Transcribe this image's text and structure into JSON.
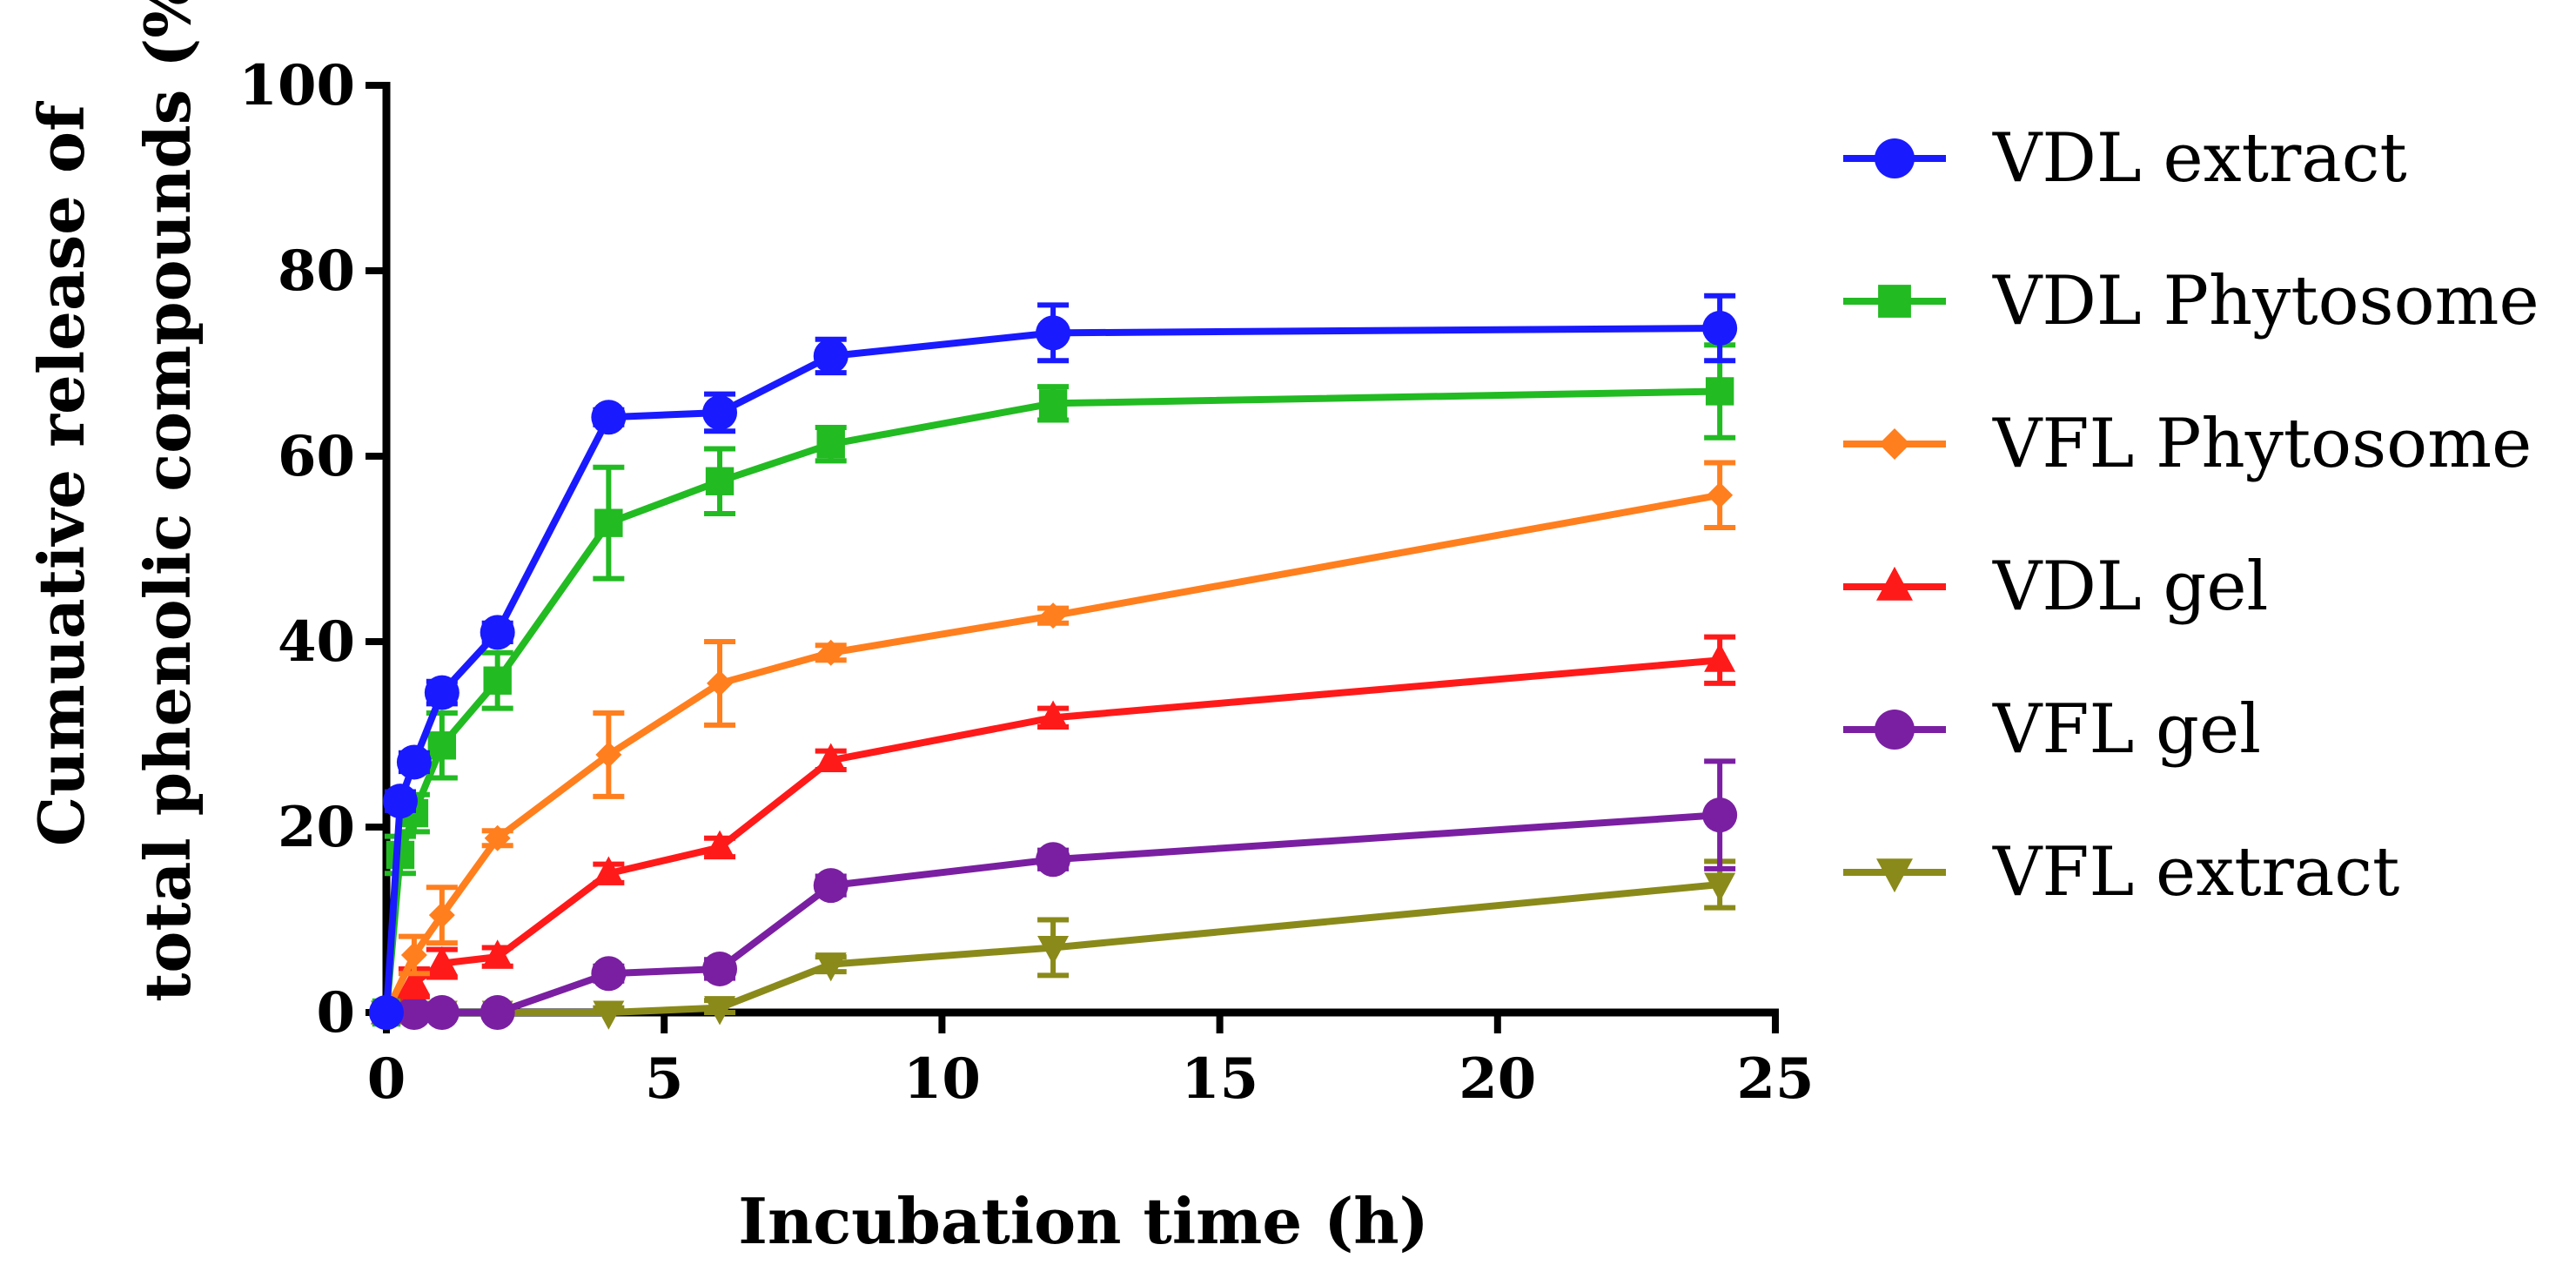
{
  "chart_data": {
    "type": "line",
    "title": "",
    "xlabel": "Incubation time (h)",
    "ylabel_line1": "Cumuative release of",
    "ylabel_line2": "total phenolic compounds (%)",
    "xlim": [
      0,
      25
    ],
    "ylim": [
      0,
      100
    ],
    "xticks": [
      0,
      5,
      10,
      15,
      20,
      25
    ],
    "yticks": [
      0,
      20,
      40,
      60,
      80,
      100
    ],
    "grid": false,
    "legend_position": "right",
    "series": [
      {
        "name": "VDL extract",
        "color": "#1a1aff",
        "marker": "circle",
        "points": [
          {
            "x": 0,
            "y": 0,
            "err": 0
          },
          {
            "x": 0.25,
            "y": 22.8,
            "err": 1.0
          },
          {
            "x": 0.5,
            "y": 27.0,
            "err": 1.0
          },
          {
            "x": 1,
            "y": 34.5,
            "err": 1.2
          },
          {
            "x": 2,
            "y": 41.0,
            "err": 1.0
          },
          {
            "x": 4,
            "y": 64.2,
            "err": 0.8
          },
          {
            "x": 6,
            "y": 64.7,
            "err": 2.0
          },
          {
            "x": 8,
            "y": 70.8,
            "err": 1.8
          },
          {
            "x": 12,
            "y": 73.3,
            "err": 3.0
          },
          {
            "x": 24,
            "y": 73.8,
            "err": 3.5
          }
        ]
      },
      {
        "name": "VDL Phytosome",
        "color": "#22bb22",
        "marker": "square",
        "points": [
          {
            "x": 0,
            "y": 0,
            "err": 0
          },
          {
            "x": 0.25,
            "y": 17.0,
            "err": 2.0
          },
          {
            "x": 0.5,
            "y": 21.5,
            "err": 2.0
          },
          {
            "x": 1,
            "y": 28.8,
            "err": 3.5
          },
          {
            "x": 2,
            "y": 35.8,
            "err": 3.0
          },
          {
            "x": 4,
            "y": 52.8,
            "err": 6.0
          },
          {
            "x": 6,
            "y": 57.3,
            "err": 3.5
          },
          {
            "x": 8,
            "y": 61.3,
            "err": 1.8
          },
          {
            "x": 12,
            "y": 65.7,
            "err": 1.8
          },
          {
            "x": 24,
            "y": 67.0,
            "err": 5.0
          }
        ]
      },
      {
        "name": "VFL Phytosome",
        "color": "#ff7f1e",
        "marker": "diamond",
        "points": [
          {
            "x": 0,
            "y": 0,
            "err": 0
          },
          {
            "x": 0.5,
            "y": 6.2,
            "err": 2.0
          },
          {
            "x": 1,
            "y": 10.5,
            "err": 3.0
          },
          {
            "x": 2,
            "y": 18.8,
            "err": 0.8
          },
          {
            "x": 4,
            "y": 27.8,
            "err": 4.5
          },
          {
            "x": 6,
            "y": 35.5,
            "err": 4.5
          },
          {
            "x": 8,
            "y": 38.8,
            "err": 0.8
          },
          {
            "x": 12,
            "y": 42.8,
            "err": 0.8
          },
          {
            "x": 24,
            "y": 55.8,
            "err": 3.5
          }
        ]
      },
      {
        "name": "VDL gel",
        "color": "#ff1a1a",
        "marker": "triangle-up",
        "points": [
          {
            "x": 0,
            "y": 0,
            "err": 0
          },
          {
            "x": 0.5,
            "y": 3.2,
            "err": 1.5
          },
          {
            "x": 1,
            "y": 5.3,
            "err": 1.5
          },
          {
            "x": 2,
            "y": 6.0,
            "err": 1.0
          },
          {
            "x": 4,
            "y": 15.0,
            "err": 1.0
          },
          {
            "x": 6,
            "y": 17.8,
            "err": 1.0
          },
          {
            "x": 8,
            "y": 27.2,
            "err": 1.0
          },
          {
            "x": 12,
            "y": 31.8,
            "err": 1.0
          },
          {
            "x": 24,
            "y": 38.0,
            "err": 2.5
          }
        ]
      },
      {
        "name": "VFL gel",
        "color": "#7a1fa2",
        "marker": "circle",
        "points": [
          {
            "x": 0,
            "y": 0,
            "err": 0
          },
          {
            "x": 0.5,
            "y": 0,
            "err": 0.5
          },
          {
            "x": 1,
            "y": 0,
            "err": 0.5
          },
          {
            "x": 2,
            "y": 0,
            "err": 0.5
          },
          {
            "x": 4,
            "y": 4.2,
            "err": 0.8
          },
          {
            "x": 6,
            "y": 4.7,
            "err": 1.0
          },
          {
            "x": 8,
            "y": 13.7,
            "err": 1.0
          },
          {
            "x": 12,
            "y": 16.5,
            "err": 1.0
          },
          {
            "x": 24,
            "y": 21.3,
            "err": 5.8
          }
        ]
      },
      {
        "name": "VFL extract",
        "color": "#8a8a1a",
        "marker": "triangle-down",
        "points": [
          {
            "x": 0,
            "y": 0,
            "err": 0
          },
          {
            "x": 0.5,
            "y": 0,
            "err": 0.5
          },
          {
            "x": 1,
            "y": 0,
            "err": 0.5
          },
          {
            "x": 2,
            "y": 0,
            "err": 0.5
          },
          {
            "x": 4,
            "y": 0,
            "err": 0.5
          },
          {
            "x": 6,
            "y": 0.5,
            "err": 0.8
          },
          {
            "x": 8,
            "y": 5.2,
            "err": 0.8
          },
          {
            "x": 12,
            "y": 7.0,
            "err": 3.0
          },
          {
            "x": 24,
            "y": 13.8,
            "err": 2.5
          }
        ]
      }
    ]
  }
}
